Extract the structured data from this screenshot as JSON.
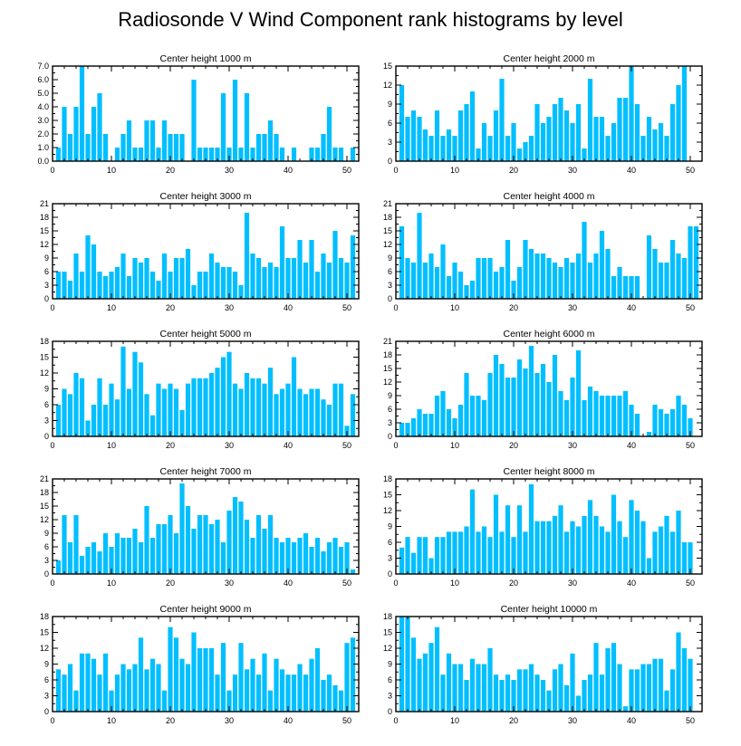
{
  "title": "Radiosonde V Wind Component rank histograms by level",
  "colors": {
    "bar": "#00bfff",
    "axis": "#000000",
    "background": "#ffffff"
  },
  "chart_data": [
    {
      "type": "bar",
      "title": "Center height 1000 m",
      "ylim": [
        0,
        7
      ],
      "yticks": [
        0.0,
        1.0,
        2.0,
        3.0,
        4.0,
        5.0,
        6.0,
        7.0
      ],
      "ytick_labels": [
        "0.0",
        "1.0",
        "2.0",
        "3.0",
        "4.0",
        "5.0",
        "6.0",
        "7.0"
      ],
      "xlim": [
        0,
        52
      ],
      "xticks": [
        0,
        10,
        20,
        30,
        40,
        50
      ],
      "values": [
        1,
        4,
        2,
        4,
        7,
        2,
        4,
        5,
        2,
        0,
        1,
        2,
        3,
        1,
        1,
        3,
        3,
        1,
        3,
        2,
        2,
        2,
        0,
        6,
        1,
        1,
        1,
        1,
        5,
        1,
        6,
        1,
        5,
        1,
        2,
        2,
        3,
        2,
        1,
        0,
        1,
        0,
        0,
        1,
        1,
        2,
        4,
        1,
        1,
        0,
        1
      ]
    },
    {
      "type": "bar",
      "title": "Center height 2000 m",
      "ylim": [
        0,
        15
      ],
      "yticks": [
        0,
        3,
        6,
        9,
        12,
        15
      ],
      "ytick_labels": [
        "0",
        "3",
        "6",
        "9",
        "12",
        "15"
      ],
      "xlim": [
        0,
        52
      ],
      "xticks": [
        0,
        10,
        20,
        30,
        40,
        50
      ],
      "values": [
        12,
        7,
        8,
        7,
        5,
        4,
        8,
        4,
        5,
        4,
        8,
        9,
        11,
        2,
        6,
        4,
        8,
        13,
        4,
        6,
        2,
        3,
        4,
        9,
        6,
        7,
        9,
        10,
        8,
        6,
        9,
        2,
        13,
        7,
        7,
        4,
        6,
        10,
        10,
        15,
        9,
        4,
        7,
        5,
        6,
        4,
        9,
        12,
        15,
        0,
        0
      ]
    },
    {
      "type": "bar",
      "title": "Center height 3000 m",
      "ylim": [
        0,
        21
      ],
      "yticks": [
        0,
        3,
        6,
        9,
        12,
        15,
        18,
        21
      ],
      "ytick_labels": [
        "0",
        "3",
        "6",
        "9",
        "12",
        "15",
        "18",
        "21"
      ],
      "xlim": [
        0,
        52
      ],
      "xticks": [
        0,
        10,
        20,
        30,
        40,
        50
      ],
      "values": [
        6,
        6,
        4,
        10,
        6,
        14,
        12,
        6,
        5,
        6,
        7,
        10,
        5,
        9,
        8,
        9,
        6,
        4,
        10,
        6,
        9,
        9,
        11,
        3,
        6,
        6,
        10,
        8,
        7,
        7,
        6,
        3,
        19,
        10,
        9,
        7,
        8,
        7,
        16,
        9,
        9,
        13,
        8,
        13,
        6,
        10,
        8,
        15,
        9,
        8,
        14
      ]
    },
    {
      "type": "bar",
      "title": "Center height 4000 m",
      "ylim": [
        0,
        21
      ],
      "yticks": [
        0,
        3,
        6,
        9,
        12,
        15,
        18,
        21
      ],
      "ytick_labels": [
        "0",
        "3",
        "6",
        "9",
        "12",
        "15",
        "18",
        "21"
      ],
      "xlim": [
        0,
        52
      ],
      "xticks": [
        0,
        10,
        20,
        30,
        40,
        50
      ],
      "values": [
        16,
        9,
        8,
        19,
        8,
        10,
        7,
        12,
        5,
        8,
        6,
        3,
        4,
        9,
        9,
        9,
        6,
        7,
        13,
        4,
        7,
        13,
        11,
        10,
        10,
        9,
        8,
        7,
        9,
        8,
        10,
        17,
        8,
        10,
        15,
        11,
        5,
        7,
        5,
        5,
        5,
        0,
        14,
        11,
        8,
        8,
        13,
        10,
        9,
        16,
        16
      ]
    },
    {
      "type": "bar",
      "title": "Center height 5000 m",
      "ylim": [
        0,
        18
      ],
      "yticks": [
        0,
        3,
        6,
        9,
        12,
        15,
        18
      ],
      "ytick_labels": [
        "0",
        "3",
        "6",
        "9",
        "12",
        "15",
        "18"
      ],
      "xlim": [
        0,
        52
      ],
      "xticks": [
        0,
        10,
        20,
        30,
        40,
        50
      ],
      "values": [
        6,
        9,
        8,
        12,
        11,
        3,
        6,
        11,
        6,
        10,
        7,
        17,
        9,
        16,
        14,
        8,
        4,
        10,
        9,
        10,
        9,
        5,
        10,
        11,
        11,
        11,
        12,
        13,
        15,
        16,
        10,
        9,
        12,
        11,
        11,
        10,
        13,
        8,
        9,
        10,
        15,
        9,
        8,
        9,
        9,
        7,
        6,
        10,
        10,
        2,
        8
      ]
    },
    {
      "type": "bar",
      "title": "Center height 6000 m",
      "ylim": [
        0,
        21
      ],
      "yticks": [
        0,
        3,
        6,
        9,
        12,
        15,
        18,
        21
      ],
      "ytick_labels": [
        "0",
        "3",
        "6",
        "9",
        "12",
        "15",
        "18",
        "21"
      ],
      "xlim": [
        0,
        52
      ],
      "xticks": [
        0,
        10,
        20,
        30,
        40,
        50
      ],
      "values": [
        3,
        3,
        4,
        6,
        5,
        5,
        9,
        10,
        6,
        4,
        7,
        14,
        9,
        9,
        8,
        14,
        18,
        16,
        13,
        13,
        17,
        15,
        20,
        14,
        16,
        12,
        18,
        10,
        8,
        13,
        19,
        8,
        11,
        10,
        9,
        9,
        9,
        9,
        10,
        7,
        5,
        0,
        1,
        7,
        6,
        5,
        6,
        9,
        7,
        4,
        0
      ]
    },
    {
      "type": "bar",
      "title": "Center height 7000 m",
      "ylim": [
        0,
        21
      ],
      "yticks": [
        0,
        3,
        6,
        9,
        12,
        15,
        18,
        21
      ],
      "ytick_labels": [
        "0",
        "3",
        "6",
        "9",
        "12",
        "15",
        "18",
        "21"
      ],
      "xlim": [
        0,
        52
      ],
      "xticks": [
        0,
        10,
        20,
        30,
        40,
        50
      ],
      "values": [
        3,
        13,
        7,
        13,
        4,
        6,
        7,
        5,
        9,
        6,
        9,
        8,
        8,
        10,
        7,
        15,
        8,
        11,
        11,
        13,
        9,
        20,
        15,
        10,
        13,
        13,
        11,
        12,
        7,
        14,
        17,
        16,
        12,
        8,
        13,
        10,
        13,
        8,
        7,
        8,
        7,
        8,
        9,
        6,
        8,
        5,
        7,
        8,
        6,
        7,
        1
      ]
    },
    {
      "type": "bar",
      "title": "Center height 8000 m",
      "ylim": [
        0,
        18
      ],
      "yticks": [
        0,
        3,
        6,
        9,
        12,
        15,
        18
      ],
      "ytick_labels": [
        "0",
        "3",
        "6",
        "9",
        "12",
        "15",
        "18"
      ],
      "xlim": [
        0,
        52
      ],
      "xticks": [
        0,
        10,
        20,
        30,
        40,
        50
      ],
      "values": [
        5,
        7,
        4,
        7,
        7,
        3,
        7,
        7,
        8,
        8,
        8,
        9,
        16,
        8,
        9,
        7,
        15,
        8,
        13,
        7,
        13,
        8,
        17,
        10,
        10,
        10,
        11,
        13,
        8,
        10,
        9,
        11,
        14,
        11,
        9,
        8,
        15,
        10,
        7,
        14,
        12,
        10,
        3,
        8,
        9,
        11,
        8,
        12,
        6,
        6,
        0
      ]
    },
    {
      "type": "bar",
      "title": "Center height 9000 m",
      "ylim": [
        0,
        18
      ],
      "yticks": [
        0,
        3,
        6,
        9,
        12,
        15,
        18
      ],
      "ytick_labels": [
        "0",
        "3",
        "6",
        "9",
        "12",
        "15",
        "18"
      ],
      "xlim": [
        0,
        52
      ],
      "xticks": [
        0,
        10,
        20,
        30,
        40,
        50
      ],
      "values": [
        8,
        7,
        9,
        4,
        11,
        11,
        10,
        7,
        11,
        4,
        7,
        9,
        8,
        9,
        14,
        8,
        10,
        9,
        4,
        16,
        14,
        10,
        9,
        15,
        12,
        12,
        12,
        7,
        13,
        4,
        7,
        13,
        8,
        10,
        7,
        11,
        4,
        10,
        8,
        7,
        7,
        9,
        7,
        10,
        12,
        6,
        7,
        5,
        4,
        13,
        14
      ]
    },
    {
      "type": "bar",
      "title": "Center height 10000 m",
      "ylim": [
        0,
        18
      ],
      "yticks": [
        0,
        3,
        6,
        9,
        12,
        15,
        18
      ],
      "ytick_labels": [
        "0",
        "3",
        "6",
        "9",
        "12",
        "15",
        "18"
      ],
      "xlim": [
        0,
        52
      ],
      "xticks": [
        0,
        10,
        20,
        30,
        40,
        50
      ],
      "values": [
        18,
        18,
        14,
        10,
        11,
        13,
        16,
        7,
        11,
        9,
        9,
        6,
        10,
        9,
        9,
        12,
        7,
        6,
        7,
        6,
        8,
        8,
        9,
        7,
        6,
        4,
        8,
        9,
        5,
        11,
        3,
        6,
        7,
        13,
        7,
        12,
        13,
        9,
        1,
        8,
        8,
        9,
        9,
        10,
        10,
        4,
        8,
        15,
        12,
        10,
        0
      ]
    }
  ]
}
